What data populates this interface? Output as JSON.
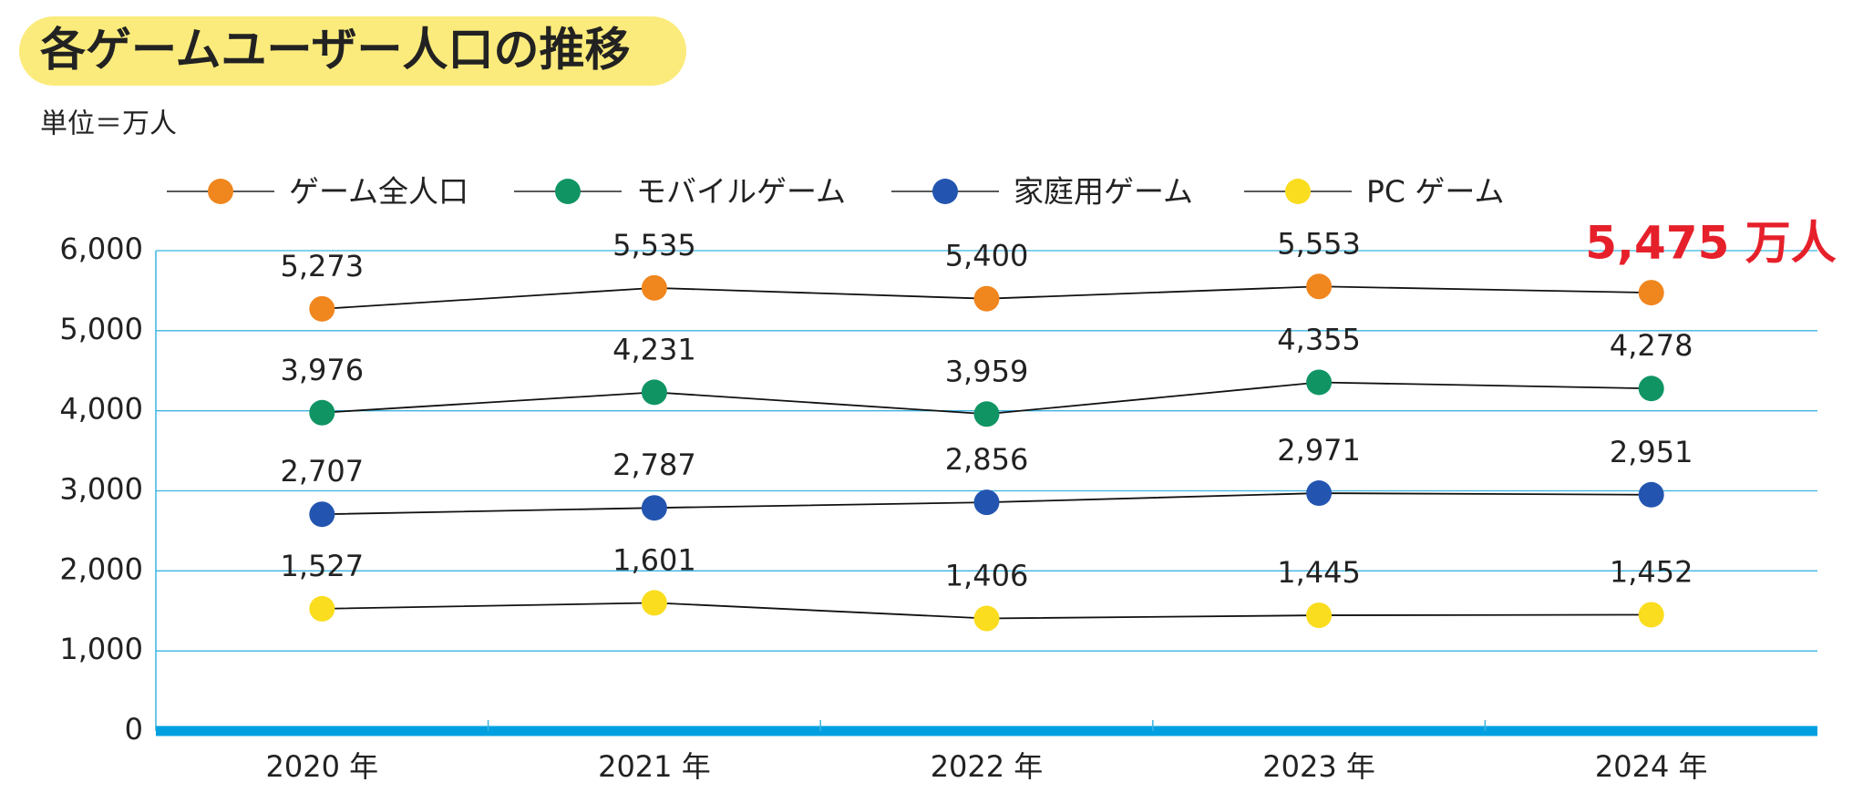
{
  "chart_data": {
    "type": "line",
    "title": "各ゲームユーザー人口の推移",
    "subtitle": "単位＝万人",
    "categories": [
      "2020 年",
      "2021 年",
      "2022 年",
      "2023 年",
      "2024 年"
    ],
    "series": [
      {
        "name": "ゲーム全人口",
        "color": "#f0861e",
        "values": [
          5273,
          5535,
          5400,
          5553,
          5475
        ],
        "value_labels": [
          "5,273",
          "5,535",
          "5,400",
          "5,553",
          "5,475 万人"
        ]
      },
      {
        "name": "モバイルゲーム",
        "color": "#109464",
        "values": [
          3976,
          4231,
          3959,
          4355,
          4278
        ],
        "value_labels": [
          "3,976",
          "4,231",
          "3,959",
          "4,355",
          "4,278"
        ]
      },
      {
        "name": "家庭用ゲーム",
        "color": "#2355b0",
        "values": [
          2707,
          2787,
          2856,
          2971,
          2951
        ],
        "value_labels": [
          "2,707",
          "2,787",
          "2,856",
          "2,971",
          "2,951"
        ]
      },
      {
        "name": "PC ゲーム",
        "color": "#fadd1e",
        "values": [
          1527,
          1601,
          1406,
          1445,
          1452
        ],
        "value_labels": [
          "1,527",
          "1,601",
          "1,406",
          "1,445",
          "1,452"
        ]
      }
    ],
    "ylim": [
      0,
      6000
    ],
    "yticks": [
      0,
      {
        "value": 1000,
        "label": "1,000"
      },
      {
        "value": 2000,
        "label": "2,000"
      },
      {
        "value": 3000,
        "label": "3,000"
      },
      {
        "value": 4000,
        "label": "4,000"
      },
      {
        "value": 5000,
        "label": "5,000"
      },
      {
        "value": 6000,
        "label": "6,000"
      }
    ],
    "grid": true
  }
}
